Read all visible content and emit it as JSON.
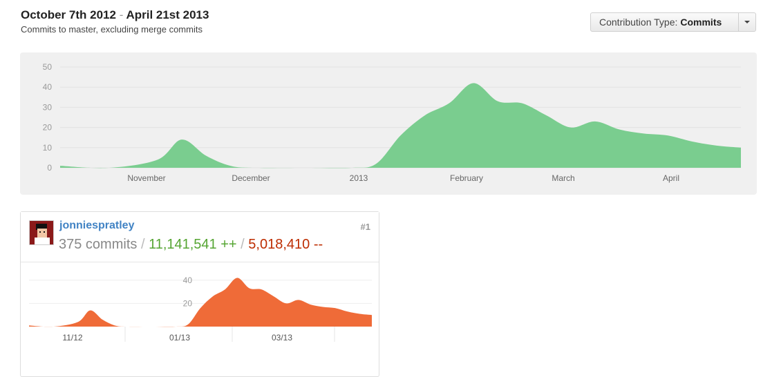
{
  "header": {
    "range_start": "October 7th 2012",
    "range_sep": "-",
    "range_end": "April 21st 2013",
    "subtitle": "Commits to master, excluding merge commits"
  },
  "contribution_type": {
    "label": "Contribution Type:",
    "value": "Commits"
  },
  "chart_data": [
    {
      "type": "area",
      "color": "#7acd8f",
      "ylim": [
        0,
        50
      ],
      "yticks": [
        "0",
        "10",
        "20",
        "30",
        "40",
        "50"
      ],
      "xtick_labels": [
        "November",
        "December",
        "2013",
        "February",
        "March",
        "April"
      ],
      "x": [
        "2012-10-07",
        "2012-10-21",
        "2012-11-04",
        "2012-11-11",
        "2012-11-18",
        "2012-11-25",
        "2012-12-02",
        "2012-12-16",
        "2012-12-30",
        "2013-01-06",
        "2013-01-13",
        "2013-01-20",
        "2013-01-27",
        "2013-02-03",
        "2013-02-10",
        "2013-02-17",
        "2013-02-24",
        "2013-03-03",
        "2013-03-10",
        "2013-03-17",
        "2013-03-24",
        "2013-03-31",
        "2013-04-07",
        "2013-04-14",
        "2013-04-21"
      ],
      "values": [
        1,
        0,
        4,
        14,
        6,
        1,
        0,
        0,
        0,
        2,
        16,
        26,
        32,
        42,
        33,
        32,
        26,
        20,
        23,
        19,
        17,
        16,
        13,
        11,
        10
      ]
    },
    {
      "type": "area",
      "color": "#ef6b38",
      "ylim": [
        0,
        50
      ],
      "yticks": [
        "20",
        "40"
      ],
      "xtick_labels": [
        "11/12",
        "01/13",
        "03/13"
      ],
      "x": [
        "2012-10-07",
        "2012-10-21",
        "2012-11-04",
        "2012-11-11",
        "2012-11-18",
        "2012-11-25",
        "2012-12-02",
        "2012-12-16",
        "2012-12-30",
        "2013-01-06",
        "2013-01-13",
        "2013-01-20",
        "2013-01-27",
        "2013-02-03",
        "2013-02-10",
        "2013-02-17",
        "2013-02-24",
        "2013-03-03",
        "2013-03-10",
        "2013-03-17",
        "2013-03-24",
        "2013-03-31",
        "2013-04-07",
        "2013-04-14",
        "2013-04-21"
      ],
      "values": [
        1,
        0,
        4,
        14,
        6,
        1,
        0,
        0,
        0,
        2,
        16,
        26,
        32,
        42,
        33,
        32,
        26,
        20,
        23,
        19,
        17,
        16,
        13,
        11,
        10
      ]
    }
  ],
  "contributor": {
    "username": "jonniespratley",
    "rank": "#1",
    "commits": "375 commits",
    "additions": "11,141,541 ++",
    "deletions": "5,018,410 --",
    "separator": "/"
  }
}
